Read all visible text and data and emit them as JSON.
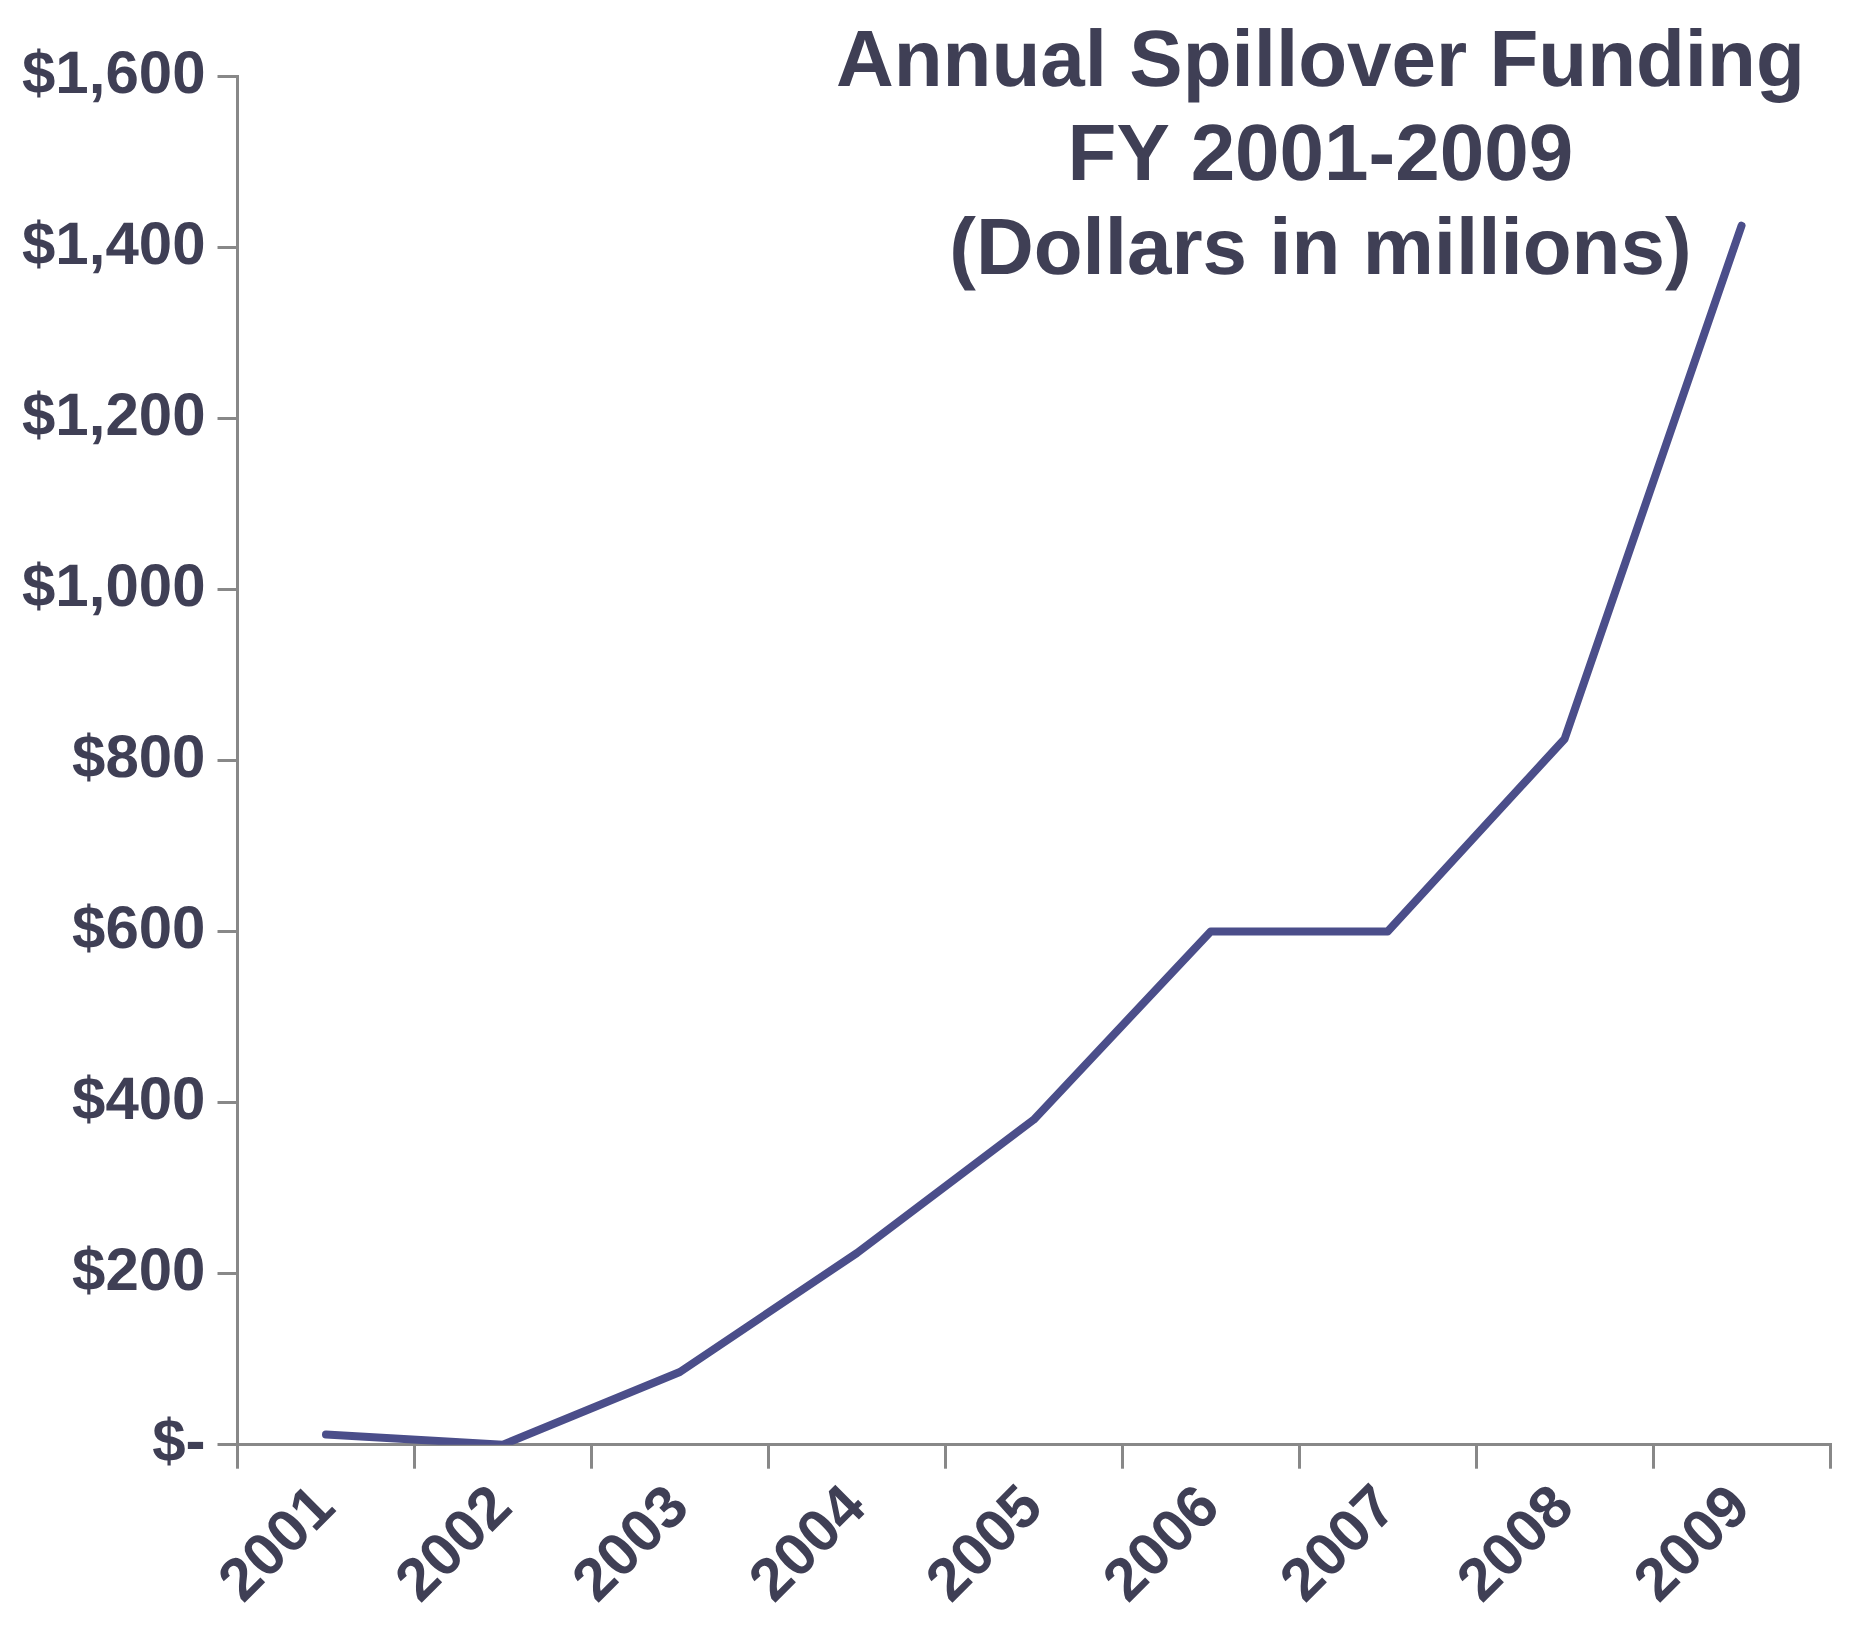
{
  "chart_data": {
    "type": "line",
    "title": "Annual Spillover Funding\nFY 2001-2009\n(Dollars in millions)",
    "categories": [
      "2001",
      "2002",
      "2003",
      "2004",
      "2005",
      "2006",
      "2007",
      "2008",
      "2009"
    ],
    "series": [
      {
        "color": "#4b4e8a",
        "values": [
          12,
          0,
          85,
          224,
          380,
          600,
          600,
          825,
          1425
        ]
      }
    ],
    "ylim": [
      0,
      1600
    ],
    "yticks": [
      {
        "value": 0,
        "label": "$-"
      },
      {
        "value": 200,
        "label": "$200"
      },
      {
        "value": 400,
        "label": "$400"
      },
      {
        "value": 600,
        "label": "$600"
      },
      {
        "value": 800,
        "label": "$800"
      },
      {
        "value": 1000,
        "label": "$1,000"
      },
      {
        "value": 1200,
        "label": "$1,200"
      },
      {
        "value": 1400,
        "label": "$1,400"
      },
      {
        "value": 1600,
        "label": "$1,600"
      }
    ],
    "grid": false,
    "legend": false,
    "marker": "none",
    "line_style": "solid"
  }
}
